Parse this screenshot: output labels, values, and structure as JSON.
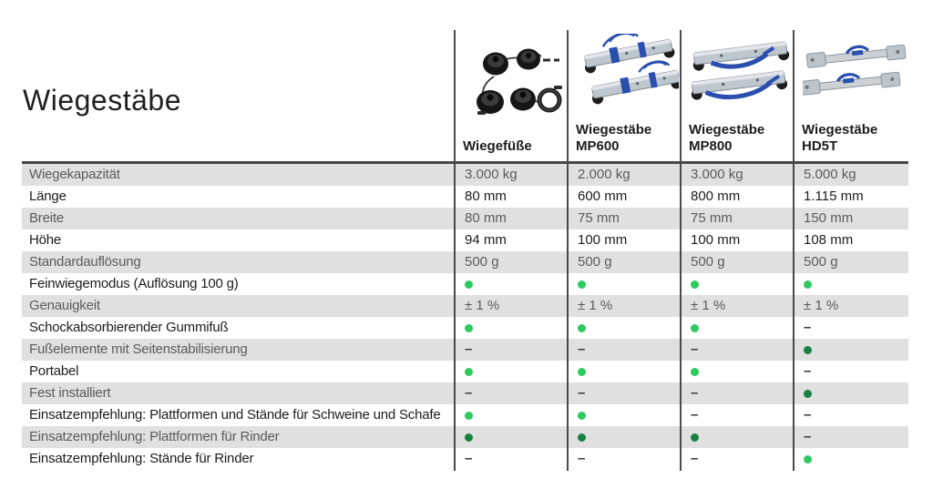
{
  "page": {
    "title": "Wiegestäbe"
  },
  "colors": {
    "dot_green": "#2bcb5e",
    "dot_green_dark": "#17823f",
    "row_shade": "#e0e0e0",
    "rule": "#4a4a4a"
  },
  "symbols": {
    "dot": "●",
    "dash": "–"
  },
  "table": {
    "products": [
      {
        "name_lines": [
          "Wiegefüße"
        ],
        "image": "wiegefuesse-load-cell-feet-photo"
      },
      {
        "name_lines": [
          "Wiegestäbe",
          "MP600"
        ],
        "image": "mp600-weigh-bars-photo"
      },
      {
        "name_lines": [
          "Wiegestäbe",
          "MP800"
        ],
        "image": "mp800-weigh-bars-photo"
      },
      {
        "name_lines": [
          "Wiegestäbe",
          "HD5T"
        ],
        "image": "hd5t-weigh-bars-photo"
      }
    ],
    "rows": [
      {
        "label": "Wiegekapazität",
        "shaded": true,
        "cells": [
          "3.000 kg",
          "2.000 kg",
          "3.000 kg",
          "5.000 kg"
        ]
      },
      {
        "label": "Länge",
        "shaded": false,
        "cells": [
          "80 mm",
          "600 mm",
          "800 mm",
          "1.115 mm"
        ]
      },
      {
        "label": "Breite",
        "shaded": true,
        "cells": [
          "80 mm",
          "75 mm",
          "75 mm",
          "150 mm"
        ]
      },
      {
        "label": "Höhe",
        "shaded": false,
        "cells": [
          "94 mm",
          "100 mm",
          "100 mm",
          "108 mm"
        ]
      },
      {
        "label": "Standardauflösung",
        "shaded": true,
        "cells": [
          "500 g",
          "500 g",
          "500 g",
          "500 g"
        ]
      },
      {
        "label": "Feinwiegemodus (Auflösung 100 g)",
        "shaded": false,
        "cells": [
          "dot",
          "dot",
          "dot",
          "dot"
        ]
      },
      {
        "label": "Genauigkeit",
        "shaded": true,
        "cells": [
          "± 1 %",
          "± 1 %",
          "± 1 %",
          "± 1 %"
        ]
      },
      {
        "label": "Schockabsorbierender Gummifuß",
        "shaded": false,
        "cells": [
          "dot",
          "dot",
          "dot",
          "dash"
        ]
      },
      {
        "label": "Fußelemente mit Seitenstabilisierung",
        "shaded": true,
        "cells": [
          "dash",
          "dash",
          "dash",
          "dot_dark"
        ]
      },
      {
        "label": "Portabel",
        "shaded": false,
        "cells": [
          "dot",
          "dot",
          "dot",
          "dash"
        ]
      },
      {
        "label": "Fest installiert",
        "shaded": true,
        "cells": [
          "dash",
          "dash",
          "dash",
          "dot_dark"
        ]
      },
      {
        "label": "Einsatzempfehlung: Plattformen und Stände für Schweine und Schafe",
        "shaded": false,
        "cells": [
          "dot",
          "dot",
          "dash",
          "dash"
        ]
      },
      {
        "label": "Einsatzempfehlung: Plattformen für Rinder",
        "shaded": true,
        "cells": [
          "dot_dark",
          "dot_dark",
          "dot_dark",
          "dash"
        ]
      },
      {
        "label": "Einsatzempfehlung: Stände für Rinder",
        "shaded": false,
        "cells": [
          "dash",
          "dash",
          "dash",
          "dot"
        ]
      }
    ]
  }
}
